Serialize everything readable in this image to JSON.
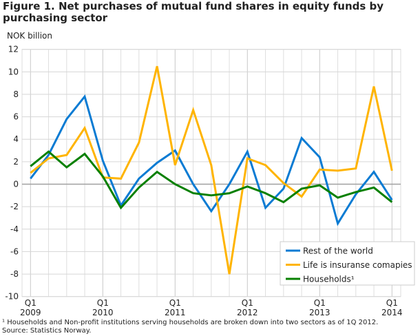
{
  "chart_data": {
    "type": "line",
    "title": "Figure 1. Net purchases of mutual fund shares in equity funds by purchasing sector",
    "ylabel": "NOK billion",
    "ylim": [
      -10,
      12
    ],
    "yticks": [
      12,
      10,
      8,
      6,
      4,
      2,
      0,
      -2,
      -4,
      -6,
      -8,
      -10
    ],
    "x": [
      "Q1 2009",
      "Q2 2009",
      "Q3 2009",
      "Q4 2009",
      "Q1 2010",
      "Q2 2010",
      "Q3 2010",
      "Q4 2010",
      "Q1 2011",
      "Q2 2011",
      "Q3 2011",
      "Q4 2011",
      "Q1 2012",
      "Q2 2012",
      "Q3 2012",
      "Q4 2012",
      "Q1 2013",
      "Q2 2013",
      "Q3 2013",
      "Q4 2013",
      "Q1 2014"
    ],
    "xtick_labels": [
      {
        "q": "Q1",
        "year": "2009"
      },
      {
        "q": "Q1",
        "year": "2010"
      },
      {
        "q": "Q1",
        "year": "2011"
      },
      {
        "q": "Q1",
        "year": "2012"
      },
      {
        "q": "Q1",
        "year": "2013"
      },
      {
        "q": "Q1",
        "year": "2014"
      }
    ],
    "grid": true,
    "legend_position": "bottom-right",
    "series": [
      {
        "name": "Rest of the world",
        "color": "#0a7bd3",
        "values": [
          0.5,
          2.6,
          5.8,
          7.8,
          2.1,
          -1.9,
          0.5,
          1.9,
          3.0,
          0.0,
          -2.4,
          0.0,
          2.9,
          -2.1,
          -0.4,
          4.1,
          2.4,
          -3.5,
          -0.9,
          1.1,
          -1.4
        ]
      },
      {
        "name": "Life is insuranse comapies",
        "color": "#ffb400",
        "values": [
          1.0,
          2.3,
          2.6,
          5.0,
          0.6,
          0.5,
          3.7,
          10.5,
          1.7,
          6.6,
          1.7,
          -8.0,
          2.3,
          1.7,
          0.1,
          -1.1,
          1.3,
          1.2,
          1.4,
          8.7,
          1.2
        ]
      },
      {
        "name": "Households¹",
        "color": "#078000",
        "values": [
          1.6,
          2.9,
          1.5,
          2.7,
          0.7,
          -2.1,
          -0.3,
          1.1,
          0.0,
          -0.8,
          -1.0,
          -0.8,
          -0.2,
          -0.8,
          -1.6,
          -0.4,
          -0.1,
          -1.2,
          -0.7,
          -0.3,
          -1.6
        ]
      }
    ]
  },
  "footnotes": {
    "note": "¹ Households and Non-profit institutions serving households are broken down into two sectors as of 1Q 2012.",
    "source": "Source: Statistics Norway."
  }
}
